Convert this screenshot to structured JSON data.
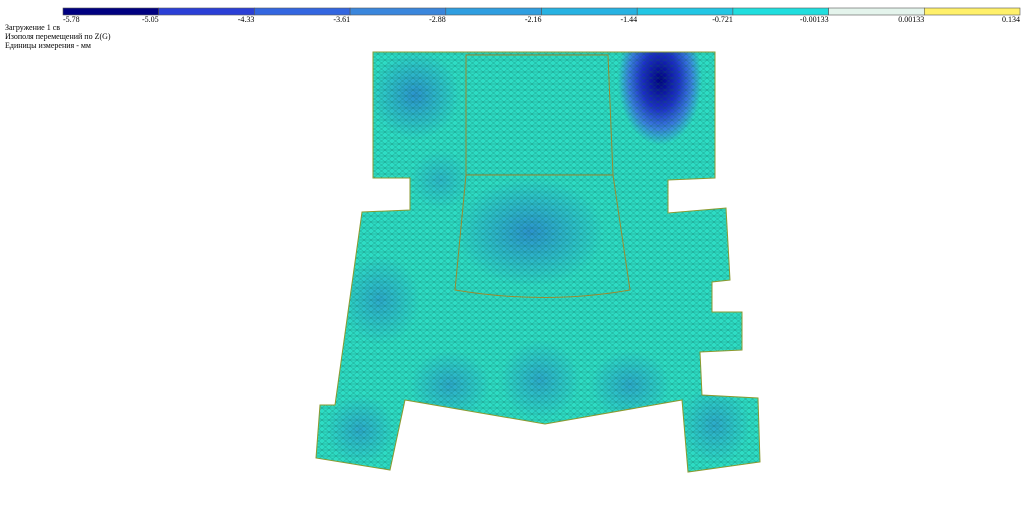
{
  "legend": {
    "labels": [
      "-5.78",
      "-5.05",
      "-4.33",
      "-3.61",
      "-2.88",
      "-2.16",
      "-1.44",
      "-0.721",
      "-0.00133",
      "0.00133",
      "0.134"
    ],
    "colors": [
      "#000080",
      "#2b3fd6",
      "#3366e0",
      "#3a86dc",
      "#2f9ee0",
      "#27b2e2",
      "#22c6e4",
      "#20dede",
      "#e4f4ec",
      "#fff06a"
    ]
  },
  "info": {
    "load": "Загружение 1 св",
    "field": "Изополя  перемещений по Z(G)",
    "units": "Единицы измерения - мм"
  }
}
